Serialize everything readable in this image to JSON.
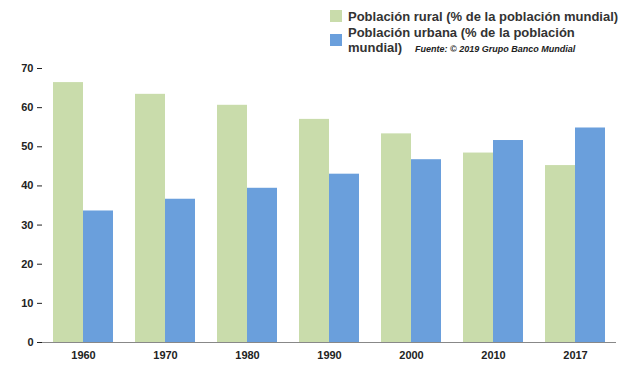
{
  "chart_data": {
    "type": "bar",
    "source": "Fuente: © 2019 Grupo Banco Mundial",
    "categories": [
      "1960",
      "1970",
      "1980",
      "1990",
      "2000",
      "2010",
      "2017"
    ],
    "series": [
      {
        "name": "Población rural (% de la población mundial)",
        "color": "#c9dcab",
        "values": [
          66.4,
          63.4,
          60.6,
          57.0,
          53.3,
          48.4,
          45.2
        ]
      },
      {
        "name": "Población urbana (% de la población mundial)",
        "color": "#6a9fdc",
        "values": [
          33.6,
          36.6,
          39.4,
          43.0,
          46.7,
          51.6,
          54.8
        ]
      }
    ],
    "ylim": [
      0,
      70
    ],
    "yticks": [
      0,
      10,
      20,
      30,
      40,
      50,
      60,
      70
    ],
    "grid": false,
    "legend": "top"
  }
}
